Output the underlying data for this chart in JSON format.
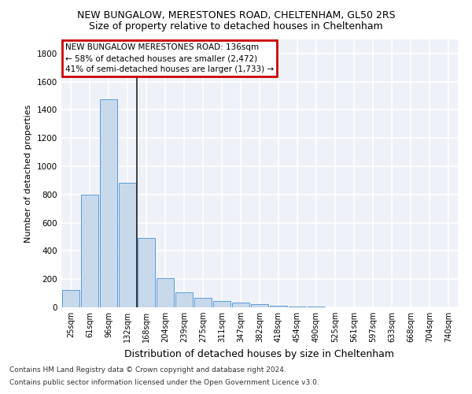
{
  "title1": "NEW BUNGALOW, MERESTONES ROAD, CHELTENHAM, GL50 2RS",
  "title2": "Size of property relative to detached houses in Cheltenham",
  "xlabel": "Distribution of detached houses by size in Cheltenham",
  "ylabel": "Number of detached properties",
  "categories": [
    "25sqm",
    "61sqm",
    "96sqm",
    "132sqm",
    "168sqm",
    "204sqm",
    "239sqm",
    "275sqm",
    "311sqm",
    "347sqm",
    "382sqm",
    "418sqm",
    "454sqm",
    "490sqm",
    "525sqm",
    "561sqm",
    "597sqm",
    "633sqm",
    "668sqm",
    "704sqm",
    "740sqm"
  ],
  "values": [
    125,
    800,
    1475,
    885,
    490,
    205,
    105,
    65,
    42,
    32,
    20,
    10,
    5,
    3,
    2,
    2,
    2,
    2,
    1,
    1,
    1
  ],
  "bar_color": "#c8d9ec",
  "bar_edge_color": "#5b9bd5",
  "vline_index": 3.5,
  "annotation_text1": "NEW BUNGALOW MERESTONES ROAD: 136sqm",
  "annotation_text2": "← 58% of detached houses are smaller (2,472)",
  "annotation_text3": "41% of semi-detached houses are larger (1,733) →",
  "vline_color": "#222222",
  "annotation_box_color": "#ffffff",
  "annotation_box_edge": "#cc0000",
  "footer1": "Contains HM Land Registry data © Crown copyright and database right 2024.",
  "footer2": "Contains public sector information licensed under the Open Government Licence v3.0.",
  "ylim": [
    0,
    1900
  ],
  "yticks": [
    0,
    200,
    400,
    600,
    800,
    1000,
    1200,
    1400,
    1600,
    1800
  ],
  "background_color": "#eef2f8",
  "grid_color": "#ffffff",
  "fig_bg": "#ffffff",
  "title1_fontsize": 9,
  "title2_fontsize": 9,
  "xlabel_fontsize": 9,
  "ylabel_fontsize": 8,
  "tick_fontsize": 7,
  "ann_fontsize": 7.5,
  "footer_fontsize": 6.5
}
